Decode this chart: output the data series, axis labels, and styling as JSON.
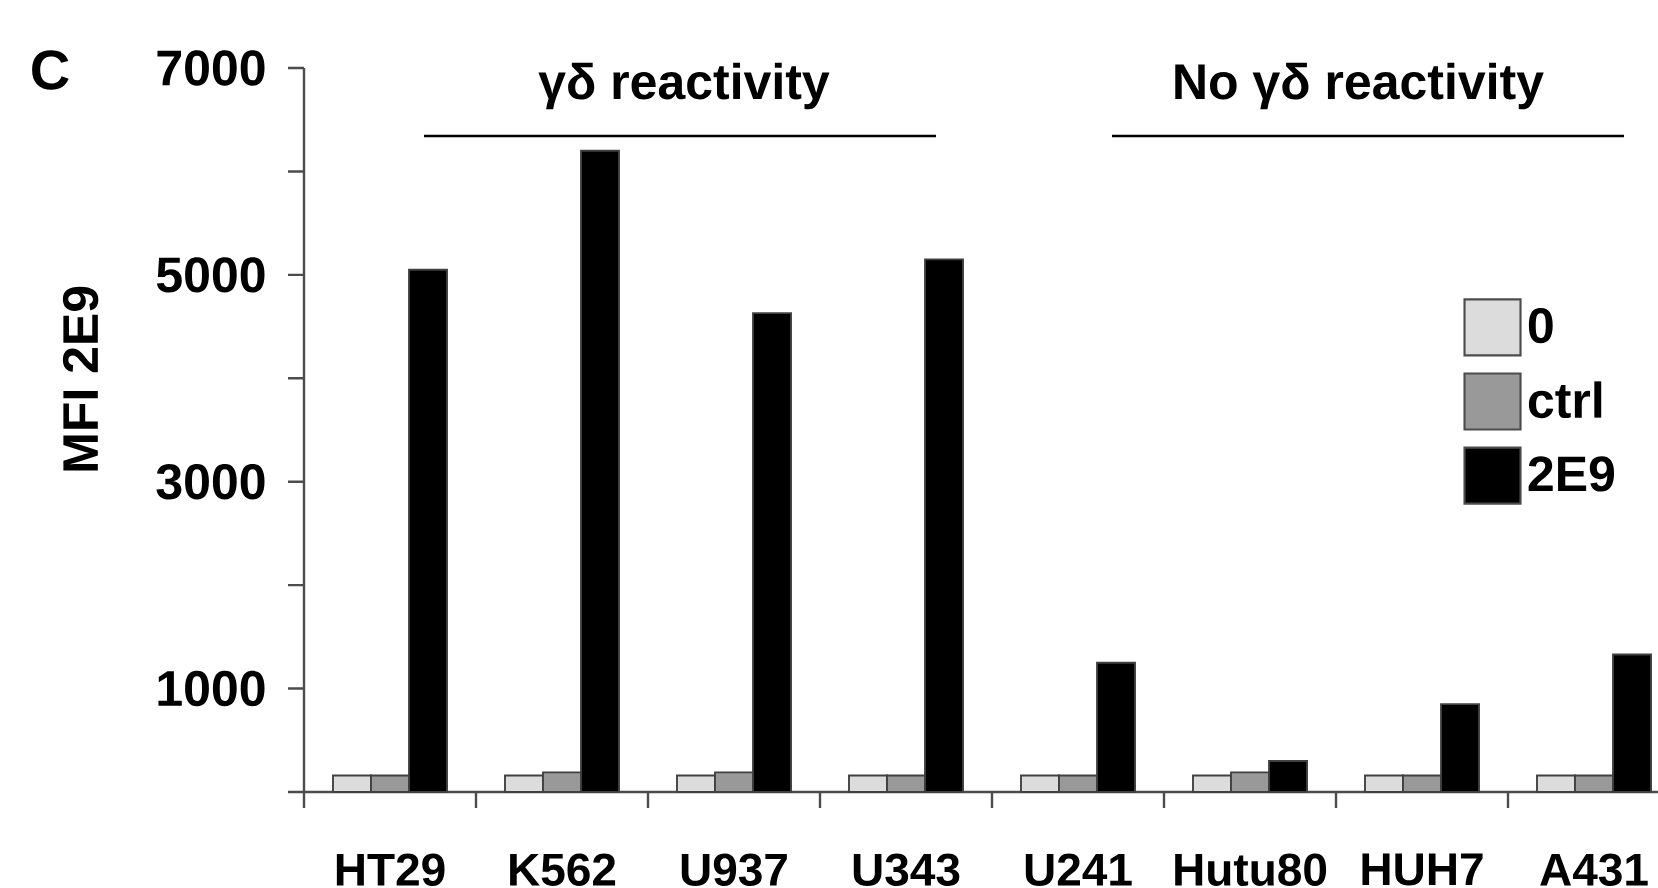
{
  "chart_data": {
    "type": "bar",
    "ylabel": "MFI 2E9",
    "annotations": [
      "C",
      "γδ reactivity",
      "No γδ reactivity"
    ],
    "categories": [
      "HT29",
      "K562",
      "U937",
      "U343",
      "U241",
      "Hutu80",
      "HUH7",
      "A431"
    ],
    "series": [
      {
        "name": "0",
        "color": "#dcdcdc",
        "values": [
          160,
          160,
          160,
          160,
          160,
          160,
          160,
          160
        ]
      },
      {
        "name": "ctrl",
        "color": "#999999",
        "values": [
          160,
          190,
          190,
          160,
          160,
          190,
          160,
          160
        ]
      },
      {
        "name": "2E9",
        "color": "#000000",
        "values": [
          5050,
          6200,
          4630,
          5150,
          1250,
          300,
          850,
          1330
        ]
      }
    ],
    "ylim": [
      0,
      7000
    ],
    "yticks": [
      {
        "value": 0,
        "label": null
      },
      1000,
      {
        "value": 2000,
        "label": null
      },
      3000,
      {
        "value": 4000,
        "label": null
      },
      5000,
      {
        "value": 6000,
        "label": null
      },
      7000
    ],
    "legend": "right",
    "grid": false
  }
}
